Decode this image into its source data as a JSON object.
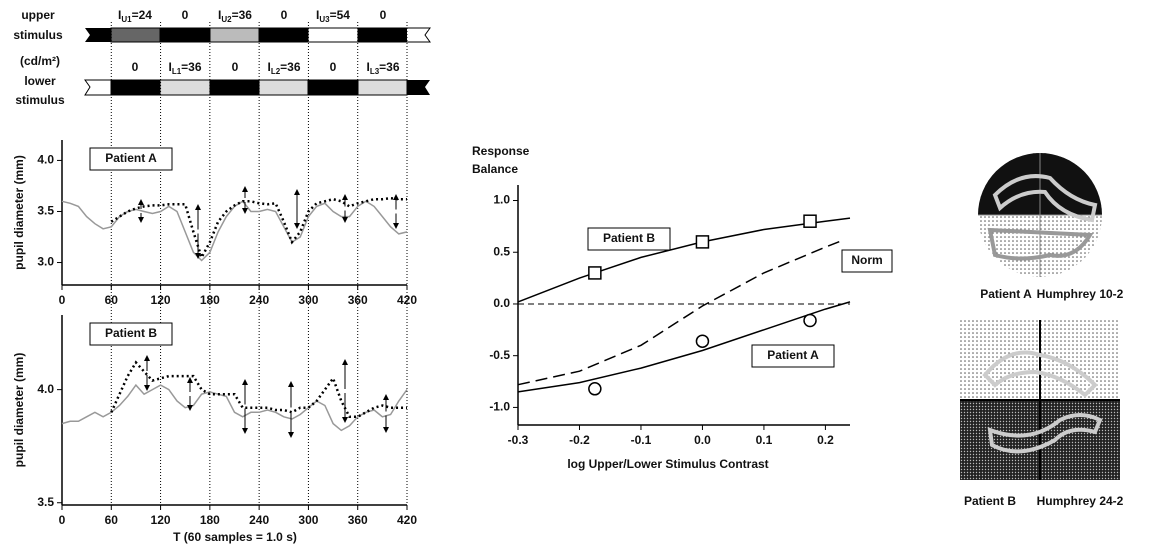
{
  "stimulus": {
    "upper_label": [
      "upper",
      "stimulus"
    ],
    "units": "(cd/m²)",
    "lower_label": [
      "lower",
      "stimulus"
    ],
    "upper_levels": [
      [
        "I",
        "U1",
        "=24"
      ],
      [
        "0"
      ],
      [
        "I",
        "U2",
        "=36"
      ],
      [
        "0"
      ],
      [
        "I",
        "U3",
        "=54"
      ],
      [
        "0"
      ]
    ],
    "lower_levels": [
      [
        "0"
      ],
      [
        "I",
        "L1",
        "=36"
      ],
      [
        "0"
      ],
      [
        "I",
        "L2",
        "=36"
      ],
      [
        "0"
      ],
      [
        "I",
        "L3",
        "=36"
      ]
    ]
  },
  "visual_fields": [
    {
      "patient": "Patient A",
      "test": "Humphrey 10-2"
    },
    {
      "patient": "Patient B",
      "test": "Humphrey 24-2"
    }
  ],
  "chart_data": [
    {
      "type": "line",
      "title": "Patient A",
      "ylabel": "pupil diameter (mm)",
      "xlim": [
        0,
        420
      ],
      "xticks": [
        0,
        60,
        120,
        180,
        240,
        300,
        360,
        420
      ],
      "ylim": [
        2.78,
        4.2
      ],
      "yticks": [
        {
          "value": 3,
          "label": "3.0"
        },
        3.5,
        {
          "value": 4,
          "label": "4.0"
        }
      ],
      "series": [
        {
          "color": "#999999",
          "style": "solid",
          "x": [
            0,
            10,
            20,
            30,
            40,
            50,
            60,
            70,
            80,
            90,
            100,
            110,
            120,
            130,
            140,
            150,
            160,
            170,
            180,
            190,
            200,
            210,
            220,
            230,
            240,
            250,
            260,
            270,
            280,
            290,
            300,
            310,
            320,
            330,
            340,
            350,
            360,
            370,
            380,
            390,
            400,
            410,
            420
          ],
          "values": [
            3.6,
            3.58,
            3.55,
            3.45,
            3.38,
            3.33,
            3.35,
            3.45,
            3.5,
            3.52,
            3.5,
            3.48,
            3.5,
            3.55,
            3.5,
            3.3,
            3.1,
            3.02,
            3.1,
            3.3,
            3.45,
            3.55,
            3.6,
            3.5,
            3.5,
            3.52,
            3.5,
            3.35,
            3.2,
            3.25,
            3.45,
            3.55,
            3.58,
            3.5,
            3.45,
            3.45,
            3.55,
            3.6,
            3.55,
            3.45,
            3.35,
            3.28,
            3.3
          ]
        },
        {
          "color": "#000000",
          "style": "dotted",
          "x": [
            60,
            70,
            80,
            90,
            100,
            110,
            120,
            130,
            140,
            150,
            160,
            170,
            180,
            190,
            200,
            210,
            220,
            230,
            240,
            250,
            260,
            270,
            280,
            290,
            300,
            310,
            320,
            330,
            340,
            350,
            360,
            370,
            380,
            390,
            400,
            410,
            420
          ],
          "values": [
            3.4,
            3.45,
            3.5,
            3.53,
            3.55,
            3.56,
            3.56,
            3.57,
            3.57,
            3.57,
            3.3,
            3.05,
            3.2,
            3.4,
            3.5,
            3.56,
            3.6,
            3.6,
            3.58,
            3.57,
            3.58,
            3.4,
            3.2,
            3.3,
            3.5,
            3.58,
            3.6,
            3.62,
            3.6,
            3.55,
            3.58,
            3.6,
            3.62,
            3.62,
            3.63,
            3.62,
            3.62
          ]
        }
      ]
    },
    {
      "type": "line",
      "title": "Patient B",
      "ylabel": "pupil diameter (mm)",
      "xlabel": "T (60 samples = 1.0 s)",
      "xlim": [
        0,
        420
      ],
      "xticks": [
        0,
        60,
        120,
        180,
        240,
        300,
        360,
        420
      ],
      "ylim": [
        3.49,
        4.33
      ],
      "yticks": [
        3.5,
        {
          "value": 4,
          "label": "4.0"
        }
      ],
      "series": [
        {
          "color": "#999999",
          "style": "solid",
          "x": [
            0,
            10,
            20,
            30,
            40,
            50,
            60,
            70,
            80,
            90,
            100,
            110,
            120,
            130,
            140,
            150,
            160,
            170,
            180,
            190,
            200,
            210,
            220,
            230,
            240,
            250,
            260,
            270,
            280,
            290,
            300,
            310,
            320,
            330,
            340,
            350,
            360,
            370,
            380,
            390,
            400,
            410,
            420
          ],
          "values": [
            3.85,
            3.86,
            3.86,
            3.88,
            3.9,
            3.88,
            3.9,
            3.93,
            3.97,
            4.02,
            3.98,
            4.0,
            4.02,
            4.0,
            3.95,
            3.92,
            3.93,
            3.98,
            3.99,
            3.98,
            3.97,
            3.9,
            3.88,
            3.9,
            3.9,
            3.91,
            3.9,
            3.88,
            3.87,
            3.89,
            3.92,
            3.95,
            3.93,
            3.85,
            3.82,
            3.84,
            3.88,
            3.9,
            3.91,
            3.88,
            3.89,
            3.95,
            4.0
          ]
        },
        {
          "color": "#000000",
          "style": "dotted",
          "x": [
            60,
            70,
            80,
            90,
            100,
            110,
            120,
            130,
            140,
            150,
            160,
            170,
            180,
            190,
            200,
            210,
            220,
            230,
            240,
            250,
            260,
            270,
            280,
            290,
            300,
            310,
            320,
            330,
            340,
            350,
            360,
            370,
            380,
            390,
            400,
            410,
            420
          ],
          "values": [
            3.9,
            3.98,
            4.06,
            4.12,
            4.08,
            4.04,
            4.05,
            4.06,
            4.06,
            4.06,
            4.06,
            4.0,
            3.98,
            3.98,
            3.98,
            3.98,
            3.92,
            3.92,
            3.92,
            3.92,
            3.91,
            3.91,
            3.9,
            3.92,
            3.92,
            3.95,
            4.0,
            4.05,
            3.95,
            3.88,
            3.88,
            3.9,
            3.92,
            3.93,
            3.92,
            3.92,
            3.92
          ]
        }
      ]
    },
    {
      "type": "line",
      "title": [
        "Response",
        "Balance"
      ],
      "xlabel": "log Upper/Lower Stimulus Contrast",
      "xlim": [
        -0.3,
        0.24
      ],
      "xticks": [
        -0.3,
        -0.2,
        -0.1,
        {
          "value": 0,
          "label": "0.0"
        },
        0.1,
        0.2
      ],
      "ylim": [
        -1.17,
        1.15
      ],
      "yticks": [
        {
          "value": -1,
          "label": "-1.0"
        },
        -0.5,
        {
          "value": 0,
          "label": "0.0"
        },
        0.5,
        {
          "value": 1,
          "label": "1.0"
        }
      ],
      "series": [
        {
          "name": "Patient B",
          "color": "#000000",
          "style": "solid",
          "x": [
            -0.3,
            -0.2,
            -0.1,
            0,
            0.1,
            0.2,
            0.24
          ],
          "values": [
            0.02,
            0.25,
            0.45,
            0.6,
            0.72,
            0.8,
            0.83
          ]
        },
        {
          "name": "Patient A",
          "color": "#000000",
          "style": "solid",
          "x": [
            -0.3,
            -0.2,
            -0.1,
            0,
            0.1,
            0.2,
            0.24
          ],
          "values": [
            -0.85,
            -0.76,
            -0.62,
            -0.45,
            -0.25,
            -0.05,
            0.02
          ]
        },
        {
          "name": "Norm",
          "color": "#000000",
          "style": "dashed",
          "x": [
            -0.3,
            -0.2,
            -0.1,
            0,
            0.1,
            0.2,
            0.23
          ],
          "values": [
            -0.78,
            -0.65,
            -0.4,
            -0.02,
            0.3,
            0.55,
            0.62
          ]
        },
        {
          "color": "#000000",
          "marker": "square",
          "x": [
            -0.175,
            0,
            0.175
          ],
          "values": [
            0.3,
            0.6,
            0.8
          ]
        },
        {
          "color": "#000000",
          "marker": "circle",
          "x": [
            -0.175,
            0,
            0.175
          ],
          "values": [
            -0.82,
            -0.36,
            -0.16
          ]
        }
      ]
    }
  ]
}
